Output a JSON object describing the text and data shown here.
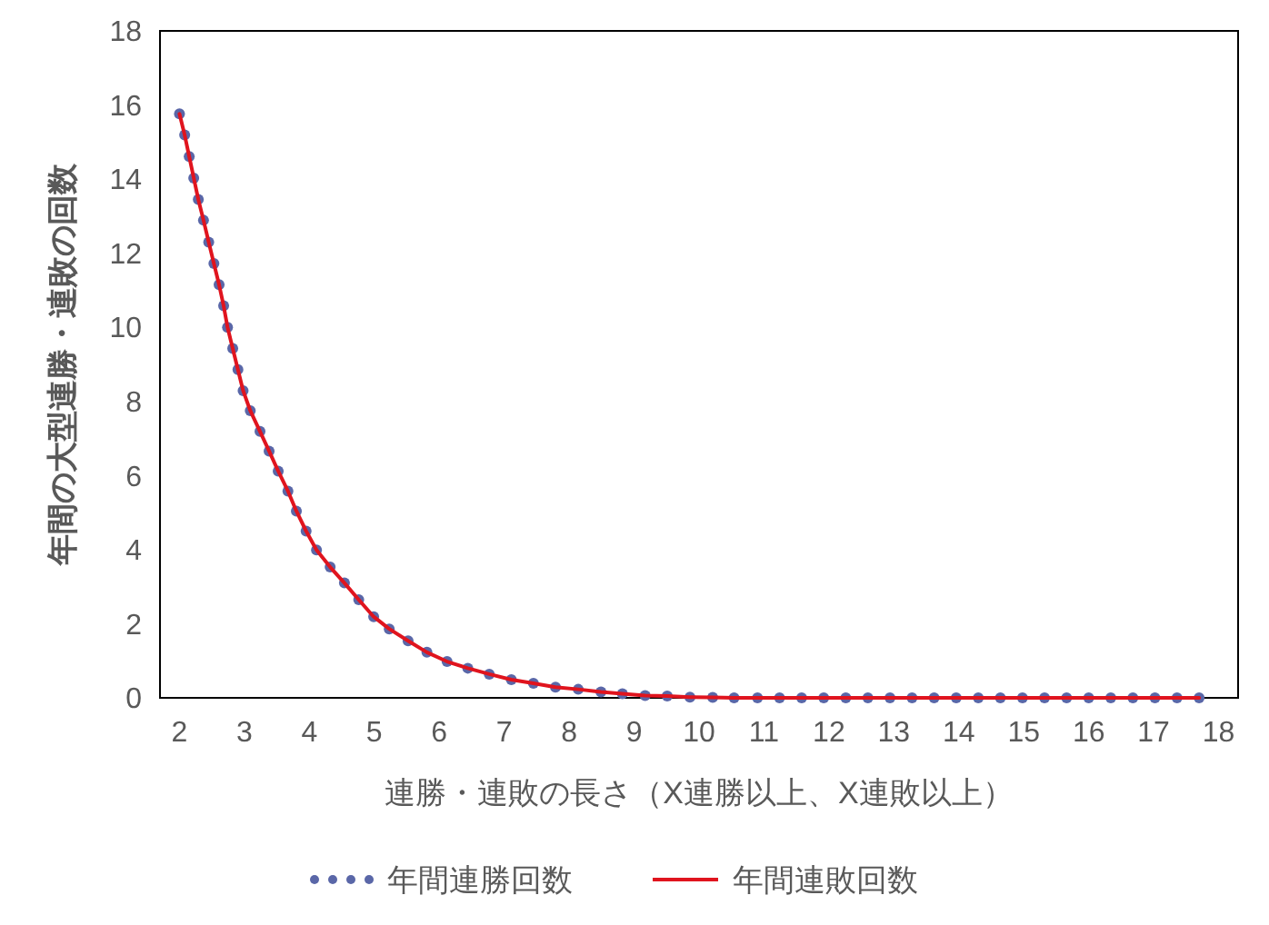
{
  "chart_data": {
    "type": "line",
    "xlabel": "連勝・連敗の長さ（X連勝以上、X連敗以上）",
    "ylabel": "年間の大型連勝・連敗の回数",
    "x": [
      2.0,
      2.08,
      2.15,
      2.22,
      2.29,
      2.37,
      2.45,
      2.53,
      2.61,
      2.68,
      2.74,
      2.82,
      2.9,
      2.98,
      3.09,
      3.24,
      3.38,
      3.52,
      3.67,
      3.8,
      3.95,
      4.11,
      4.32,
      4.54,
      4.76,
      4.99,
      5.23,
      5.52,
      5.81,
      6.12,
      6.44,
      6.77,
      7.11,
      7.45,
      7.79,
      8.14,
      8.49,
      8.82,
      9.17,
      9.51,
      9.86,
      10.21,
      10.54,
      10.9,
      11.24,
      11.58,
      11.92,
      12.26,
      12.6,
      12.94,
      13.28,
      13.62,
      13.96,
      14.3,
      14.64,
      14.98,
      15.32,
      15.66,
      16.0,
      16.34,
      16.68,
      17.02,
      17.36,
      17.7
    ],
    "series": [
      {
        "name": "年間連勝回数",
        "type": "scatter",
        "marker": "circle",
        "color": "#5a67a8",
        "values": [
          15.76,
          15.19,
          14.61,
          14.03,
          13.45,
          12.89,
          12.3,
          11.72,
          11.15,
          10.58,
          10.0,
          9.43,
          8.86,
          8.29,
          7.75,
          7.19,
          6.66,
          6.12,
          5.58,
          5.04,
          4.5,
          3.99,
          3.53,
          3.1,
          2.65,
          2.19,
          1.86,
          1.54,
          1.23,
          0.98,
          0.8,
          0.64,
          0.49,
          0.39,
          0.29,
          0.23,
          0.16,
          0.11,
          0.06,
          0.05,
          0.02,
          0.01,
          0,
          0,
          0,
          0,
          0,
          0,
          0,
          0,
          0,
          0,
          0,
          0,
          0,
          0,
          0,
          0,
          0,
          0,
          0,
          0,
          0,
          0
        ]
      },
      {
        "name": "年間連敗回数",
        "marker": "none",
        "color": "#e0141e",
        "values": [
          15.76,
          15.19,
          14.61,
          14.03,
          13.45,
          12.89,
          12.3,
          11.72,
          11.15,
          10.58,
          10.0,
          9.43,
          8.86,
          8.29,
          7.75,
          7.19,
          6.66,
          6.12,
          5.58,
          5.04,
          4.5,
          3.99,
          3.53,
          3.1,
          2.65,
          2.19,
          1.86,
          1.54,
          1.23,
          0.98,
          0.8,
          0.64,
          0.49,
          0.39,
          0.29,
          0.23,
          0.16,
          0.11,
          0.06,
          0.05,
          0.02,
          0.01,
          0,
          0,
          0,
          0,
          0,
          0,
          0,
          0,
          0,
          0,
          0,
          0,
          0,
          0,
          0,
          0,
          0,
          0,
          0,
          0,
          0,
          0
        ]
      }
    ],
    "xlim": [
      1.7,
      18.3
    ],
    "xticks": [
      2,
      3,
      4,
      5,
      6,
      7,
      8,
      9,
      10,
      11,
      12,
      13,
      14,
      15,
      16,
      17,
      18
    ],
    "ylim": [
      0,
      18
    ],
    "yticks": [
      0,
      2,
      4,
      6,
      8,
      10,
      12,
      14,
      16,
      18
    ],
    "grid": false,
    "legend": "bottom"
  }
}
